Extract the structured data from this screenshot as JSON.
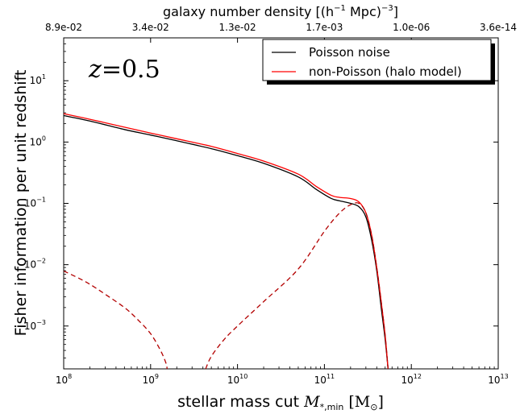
{
  "chart_data": {
    "type": "line",
    "title": "",
    "xlabel": "stellar mass cut M_{*,min} [M_⊙]",
    "xlabel_plain": "stellar mass cut ",
    "xlabel_math": "M",
    "xlabel_sub": "*,min",
    "xlabel_units_open": " [M",
    "xlabel_units_sub": "⊙",
    "xlabel_units_close": "]",
    "ylabel": "Fisher information per unit redshift",
    "x_scale": "log",
    "y_scale": "log",
    "xlim": [
      100000000.0,
      10000000000000.0
    ],
    "ylim": [
      0.0002,
      50
    ],
    "x_ticks": [
      {
        "base": "10",
        "exp": "8"
      },
      {
        "base": "10",
        "exp": "9"
      },
      {
        "base": "10",
        "exp": "10"
      },
      {
        "base": "10",
        "exp": "11"
      },
      {
        "base": "10",
        "exp": "12"
      },
      {
        "base": "10",
        "exp": "13"
      }
    ],
    "y_ticks": [
      {
        "base": "10",
        "exp": "-3",
        "value": 0.001
      },
      {
        "base": "10",
        "exp": "-2",
        "value": 0.01
      },
      {
        "base": "10",
        "exp": "-1",
        "value": 0.1
      },
      {
        "base": "10",
        "exp": "0",
        "value": 1
      },
      {
        "base": "10",
        "exp": "1",
        "value": 10
      }
    ],
    "top_axis": {
      "label": "galaxy number density [(h^{-1} Mpc)^{-3}]",
      "label_parts": {
        "pre": "galaxy number density [(h",
        "sup1": "−1",
        "mid": " Mpc)",
        "sup2": "−3",
        "post": "]"
      },
      "tick_labels": [
        "8.9e-02",
        "3.4e-02",
        "1.3e-02",
        "1.7e-03",
        "1.0e-06",
        "3.6e-14"
      ]
    },
    "annotation": "z=0.5",
    "annotation_parts": {
      "var": "z",
      "eq": "=0.5"
    },
    "grid": false,
    "legend_position": "top-right",
    "series": [
      {
        "name": "Poisson noise",
        "color": "#000000",
        "style": "solid",
        "x": [
          100000000.0,
          200000000.0,
          500000000.0,
          1000000000.0,
          2000000000.0,
          5000000000.0,
          10000000000.0,
          20000000000.0,
          50000000000.0,
          80000000000.0,
          120000000000.0,
          150000000000.0,
          200000000000.0,
          250000000000.0,
          300000000000.0,
          350000000000.0,
          400000000000.0,
          450000000000.0,
          500000000000.0,
          540000000000.0
        ],
        "y": [
          2.7,
          2.2,
          1.6,
          1.3,
          1.05,
          0.78,
          0.6,
          0.45,
          0.27,
          0.17,
          0.12,
          0.11,
          0.1,
          0.088,
          0.06,
          0.025,
          0.008,
          0.002,
          0.0006,
          0.0002
        ]
      },
      {
        "name": "non-Poisson (halo model)",
        "color": "#ff0000",
        "style": "solid",
        "x": [
          100000000.0,
          200000000.0,
          500000000.0,
          1000000000.0,
          2000000000.0,
          5000000000.0,
          10000000000.0,
          20000000000.0,
          50000000000.0,
          80000000000.0,
          120000000000.0,
          150000000000.0,
          200000000000.0,
          250000000000.0,
          300000000000.0,
          350000000000.0,
          400000000000.0,
          450000000000.0,
          500000000000.0,
          540000000000.0
        ],
        "y": [
          2.9,
          2.35,
          1.75,
          1.4,
          1.13,
          0.85,
          0.65,
          0.49,
          0.3,
          0.19,
          0.135,
          0.125,
          0.12,
          0.105,
          0.07,
          0.03,
          0.009,
          0.0025,
          0.0007,
          0.0002
        ]
      },
      {
        "name": "",
        "color": "#b30000",
        "style": "dashed",
        "x": [
          100000000.0,
          150000000.0,
          200000000.0,
          300000000.0,
          500000000.0,
          700000000.0,
          1000000000.0,
          1300000000.0,
          1500000000.0,
          1550000000.0
        ],
        "y": [
          0.0079,
          0.006,
          0.0048,
          0.0033,
          0.002,
          0.0013,
          0.00075,
          0.0004,
          0.00025,
          0.0002
        ]
      },
      {
        "name": "",
        "color": "#b30000",
        "style": "dashed",
        "x": [
          4300000000.0,
          5000000000.0,
          7000000000.0,
          10000000000.0,
          20000000000.0,
          50000000000.0,
          100000000000.0,
          150000000000.0,
          200000000000.0,
          250000000000.0,
          300000000000.0,
          350000000000.0,
          400000000000.0,
          450000000000.0,
          500000000000.0,
          540000000000.0
        ],
        "y": [
          0.0002,
          0.00032,
          0.0006,
          0.001,
          0.0025,
          0.0085,
          0.035,
          0.07,
          0.095,
          0.1,
          0.07,
          0.03,
          0.009,
          0.0025,
          0.0007,
          0.0002
        ]
      }
    ]
  }
}
